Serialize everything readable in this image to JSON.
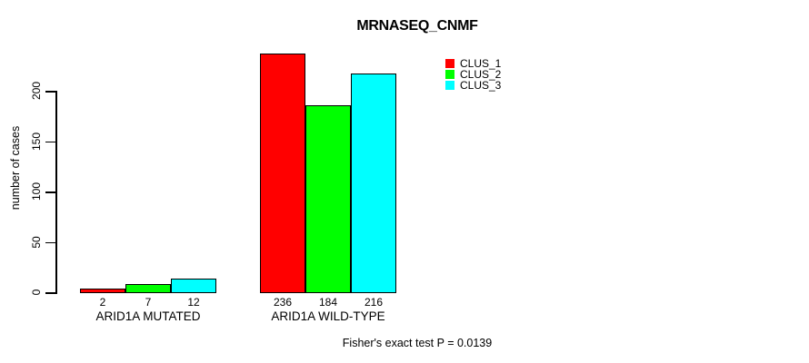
{
  "chart_data": {
    "type": "bar",
    "title": "MRNASEQ_CNMF",
    "xlabel": "",
    "ylabel": "number of cases",
    "categories": [
      "ARID1A MUTATED",
      "ARID1A WILD-TYPE"
    ],
    "series": [
      {
        "name": "CLUS_1",
        "color": "#ff0000",
        "values": [
          2,
          236
        ]
      },
      {
        "name": "CLUS_2",
        "color": "#00ff00",
        "values": [
          7,
          184
        ]
      },
      {
        "name": "CLUS_3",
        "color": "#00ffff",
        "values": [
          12,
          216
        ]
      }
    ],
    "bar_labels": [
      [
        "2",
        "7",
        "12"
      ],
      [
        "236",
        "184",
        "216"
      ]
    ],
    "y_ticks": [
      0,
      50,
      100,
      150,
      200
    ],
    "ylim": [
      0,
      240
    ],
    "grid": false,
    "legend_position": "top-right",
    "annotation": "Fisher's exact test P = 0.0139",
    "colors": {
      "background": "#ffffff",
      "axis": "#000000",
      "text": "#000000",
      "bar_border": "#000000"
    }
  }
}
